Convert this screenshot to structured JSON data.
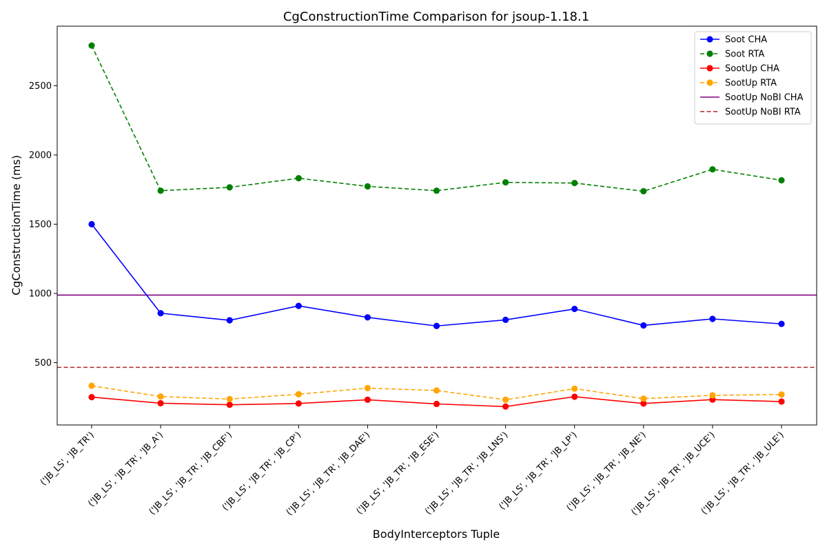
{
  "chart_data": {
    "type": "line",
    "title": "CgConstructionTime Comparison for jsoup-1.18.1",
    "xlabel": "BodyInterceptors Tuple",
    "ylabel": "CgConstructionTime (ms)",
    "ylim": [
      50,
      2930
    ],
    "yticks": [
      500,
      1000,
      1500,
      2000,
      2500
    ],
    "grid": false,
    "legend_position": "top-right",
    "categories": [
      "('JB_LS', 'JB_TR')",
      "('JB_LS', 'JB_TR', 'JB_A')",
      "('JB_LS', 'JB_TR', 'JB_CBF')",
      "('JB_LS', 'JB_TR', 'JB_CP')",
      "('JB_LS', 'JB_TR', 'JB_DAE')",
      "('JB_LS', 'JB_TR', 'JB_ESE')",
      "('JB_LS', 'JB_TR', 'JB_LNS')",
      "('JB_LS', 'JB_TR', 'JB_LP')",
      "('JB_LS', 'JB_TR', 'JB_NE')",
      "('JB_LS', 'JB_TR', 'JB_UCE')",
      "('JB_LS', 'JB_TR', 'JB_ULE')"
    ],
    "series": [
      {
        "name": "Soot CHA",
        "color": "#0000ff",
        "style": "solid",
        "marker": true,
        "values": [
          1500,
          857,
          806,
          910,
          827,
          765,
          809,
          888,
          769,
          816,
          780
        ]
      },
      {
        "name": "Soot RTA",
        "color": "#008000",
        "style": "dashed",
        "marker": true,
        "values": [
          2790,
          1742,
          1766,
          1832,
          1773,
          1742,
          1802,
          1797,
          1738,
          1896,
          1817
        ]
      },
      {
        "name": "SootUp CHA",
        "color": "#ff0000",
        "style": "solid",
        "marker": true,
        "values": [
          251,
          207,
          196,
          205,
          232,
          202,
          183,
          254,
          205,
          233,
          219
        ]
      },
      {
        "name": "SootUp RTA",
        "color": "#ffa500",
        "style": "dashed",
        "marker": true,
        "values": [
          333,
          255,
          237,
          272,
          316,
          299,
          232,
          312,
          240,
          264,
          270
        ]
      }
    ],
    "reference_lines": [
      {
        "name": "SootUp NoBI CHA",
        "color": "#800080",
        "style": "solid",
        "value": 988
      },
      {
        "name": "SootUp NoBI RTA",
        "color": "#b22222",
        "style": "dashed",
        "value": 466
      }
    ]
  }
}
